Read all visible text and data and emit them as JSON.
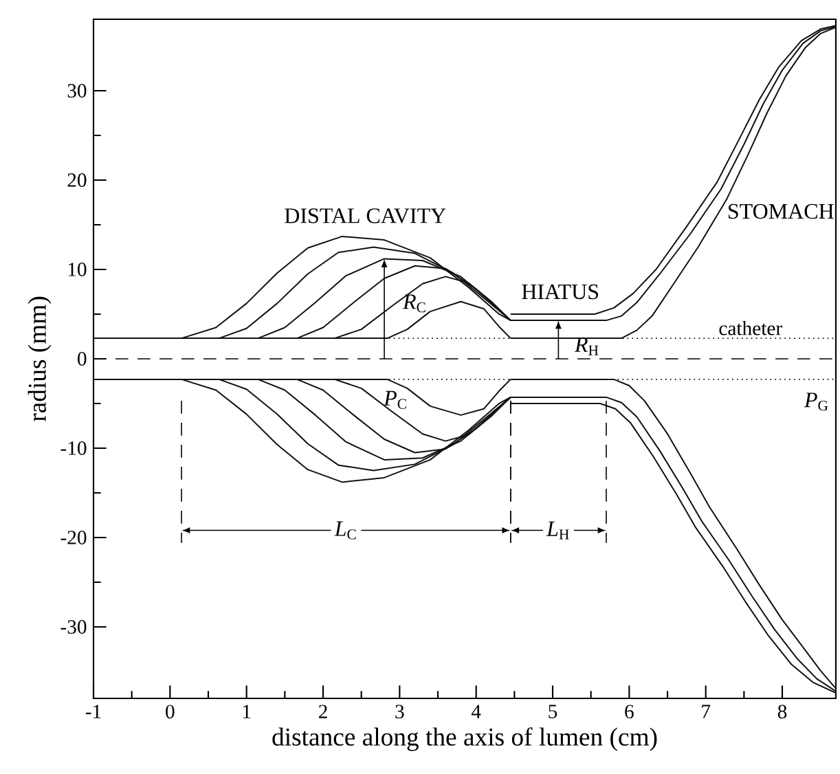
{
  "chart_data": {
    "type": "line",
    "color": "#111111",
    "xlabel": "distance along the axis of lumen (cm)",
    "ylabel": "radius (mm)",
    "xlim": [
      -1,
      8.7
    ],
    "ylim": [
      -38,
      38
    ],
    "xticks": [
      -1,
      0,
      1,
      2,
      3,
      4,
      5,
      6,
      7,
      8
    ],
    "yticks": [
      -30,
      -20,
      -10,
      0,
      10,
      20,
      30
    ],
    "series": [
      {
        "x": [
          0.15,
          0.6,
          1.0,
          1.4,
          1.8,
          2.25,
          2.8,
          3.4,
          3.9,
          4.3,
          4.45
        ],
        "values": [
          2.3,
          3.5,
          6.2,
          9.6,
          12.4,
          13.7,
          13.3,
          11.3,
          8.0,
          5.0,
          4.3
        ]
      },
      {
        "x": [
          0.64,
          1.0,
          1.4,
          1.8,
          2.2,
          2.66,
          3.2,
          3.7,
          4.1,
          4.45
        ],
        "values": [
          2.3,
          3.4,
          6.2,
          9.5,
          11.9,
          12.5,
          11.8,
          9.6,
          6.8,
          4.3
        ]
      },
      {
        "x": [
          1.15,
          1.5,
          1.9,
          2.3,
          2.8,
          3.3,
          3.8,
          4.2,
          4.45
        ],
        "values": [
          2.3,
          3.5,
          6.3,
          9.3,
          11.2,
          11.0,
          9.2,
          6.3,
          4.3
        ]
      },
      {
        "x": [
          1.66,
          2.0,
          2.4,
          2.8,
          3.2,
          3.6,
          4.0,
          4.45
        ],
        "values": [
          2.3,
          3.5,
          6.3,
          9.0,
          10.4,
          10.1,
          7.8,
          4.3
        ]
      },
      {
        "x": [
          2.15,
          2.5,
          2.9,
          3.3,
          3.6,
          3.9,
          4.2,
          4.45
        ],
        "values": [
          2.3,
          3.3,
          5.9,
          8.4,
          9.2,
          8.5,
          6.4,
          4.3
        ]
      },
      {
        "x": [
          -1,
          2.84,
          3.1,
          3.4,
          3.8,
          4.1,
          4.3,
          4.45
        ],
        "values": [
          2.3,
          2.3,
          3.3,
          5.3,
          6.4,
          5.6,
          3.6,
          2.3
        ]
      },
      {
        "x": [
          0.15,
          0.6,
          1.0,
          1.4,
          1.8,
          2.25,
          2.8,
          3.4,
          3.9,
          4.3,
          4.45
        ],
        "values": [
          -2.3,
          -3.5,
          -6.2,
          -9.6,
          -12.4,
          -13.8,
          -13.3,
          -11.3,
          -8.0,
          -5.0,
          -4.3
        ]
      },
      {
        "x": [
          0.64,
          1.0,
          1.4,
          1.8,
          2.2,
          2.66,
          3.2,
          3.7,
          4.1,
          4.45
        ],
        "values": [
          -2.3,
          -3.4,
          -6.2,
          -9.5,
          -11.9,
          -12.5,
          -11.8,
          -9.6,
          -6.8,
          -4.3
        ]
      },
      {
        "x": [
          1.15,
          1.5,
          1.9,
          2.3,
          2.8,
          3.3,
          3.8,
          4.2,
          4.45
        ],
        "values": [
          -2.3,
          -3.5,
          -6.3,
          -9.3,
          -11.3,
          -11.1,
          -9.2,
          -6.3,
          -4.3
        ]
      },
      {
        "x": [
          1.66,
          2.0,
          2.4,
          2.8,
          3.2,
          3.6,
          4.0,
          4.45
        ],
        "values": [
          -2.3,
          -3.5,
          -6.3,
          -9.0,
          -10.5,
          -10.1,
          -7.8,
          -4.3
        ]
      },
      {
        "x": [
          2.15,
          2.5,
          2.9,
          3.3,
          3.6,
          3.9,
          4.2,
          4.45
        ],
        "values": [
          -2.3,
          -3.3,
          -5.9,
          -8.4,
          -9.2,
          -8.5,
          -6.4,
          -4.3
        ]
      },
      {
        "x": [
          -1,
          2.84,
          3.1,
          3.4,
          3.8,
          4.1,
          4.3,
          4.45
        ],
        "values": [
          -2.3,
          -2.3,
          -3.3,
          -5.3,
          -6.3,
          -5.6,
          -3.6,
          -2.3
        ]
      },
      {
        "x": [
          4.45,
          5.55,
          5.8,
          6.05,
          6.35,
          6.75,
          7.15,
          7.45,
          7.7,
          7.95,
          8.25,
          8.5,
          8.7
        ],
        "values": [
          5.0,
          5.0,
          5.7,
          7.3,
          10,
          14.8,
          19.8,
          24.8,
          29,
          32.6,
          35.6,
          36.9,
          37.3
        ]
      },
      {
        "x": [
          4.45,
          5.7,
          5.9,
          6.1,
          6.4,
          6.8,
          7.2,
          7.5,
          7.75,
          8.0,
          8.27,
          8.5,
          8.7
        ],
        "values": [
          4.3,
          4.3,
          4.8,
          6.3,
          9.5,
          14,
          19,
          24,
          28.5,
          32.3,
          35.3,
          36.7,
          37.2
        ]
      },
      {
        "x": [
          4.45,
          5.9,
          6.1,
          6.3,
          6.55,
          6.9,
          7.27,
          7.55,
          7.8,
          8.05,
          8.3,
          8.5,
          8.7
        ],
        "values": [
          2.3,
          2.3,
          3.2,
          4.8,
          8,
          12.5,
          17.8,
          22.8,
          27.5,
          31.7,
          34.8,
          36.4,
          37.1
        ]
      },
      {
        "x": [
          4.45,
          5.8,
          6.0,
          6.2,
          6.5,
          6.8,
          7.05,
          7.4,
          7.7,
          8.0,
          8.3,
          8.5,
          8.7
        ],
        "values": [
          -2.3,
          -2.3,
          -3.0,
          -4.7,
          -8.4,
          -12.8,
          -16.6,
          -21.2,
          -25.3,
          -29.2,
          -32.6,
          -34.9,
          -36.9
        ]
      },
      {
        "x": [
          4.45,
          5.7,
          5.9,
          6.1,
          6.4,
          6.7,
          6.95,
          7.3,
          7.6,
          7.9,
          8.2,
          8.45,
          8.7
        ],
        "values": [
          -4.3,
          -4.3,
          -4.9,
          -6.5,
          -10.3,
          -14.5,
          -18.2,
          -22.5,
          -26.5,
          -30.3,
          -33.6,
          -35.8,
          -37.2
        ]
      },
      {
        "x": [
          4.45,
          5.62,
          5.82,
          6.02,
          6.32,
          6.62,
          6.87,
          7.22,
          7.52,
          7.82,
          8.12,
          8.4,
          8.7
        ],
        "values": [
          -5.0,
          -5.0,
          -5.6,
          -7.2,
          -11.0,
          -15.2,
          -18.9,
          -23.2,
          -27.2,
          -31.0,
          -34.2,
          -36.2,
          -37.4
        ]
      }
    ],
    "ref_lines": [
      {
        "axis": "y",
        "value": 0,
        "line_style": "dashed"
      },
      {
        "axis": "y",
        "value": 2.3,
        "line_style": "dotted",
        "label": "catheter"
      },
      {
        "axis": "y",
        "value": -2.3,
        "line_style": "dotted"
      }
    ],
    "annotations": [
      "DISTAL CAVITY",
      "HIATUS",
      "STOMACH",
      "*R*$_{C}$",
      "*R*$_{H}$",
      "*P*$_{C}$",
      "*P*$_{G}$",
      "*L*$_{C}$",
      "*L*$_{H}$"
    ]
  }
}
